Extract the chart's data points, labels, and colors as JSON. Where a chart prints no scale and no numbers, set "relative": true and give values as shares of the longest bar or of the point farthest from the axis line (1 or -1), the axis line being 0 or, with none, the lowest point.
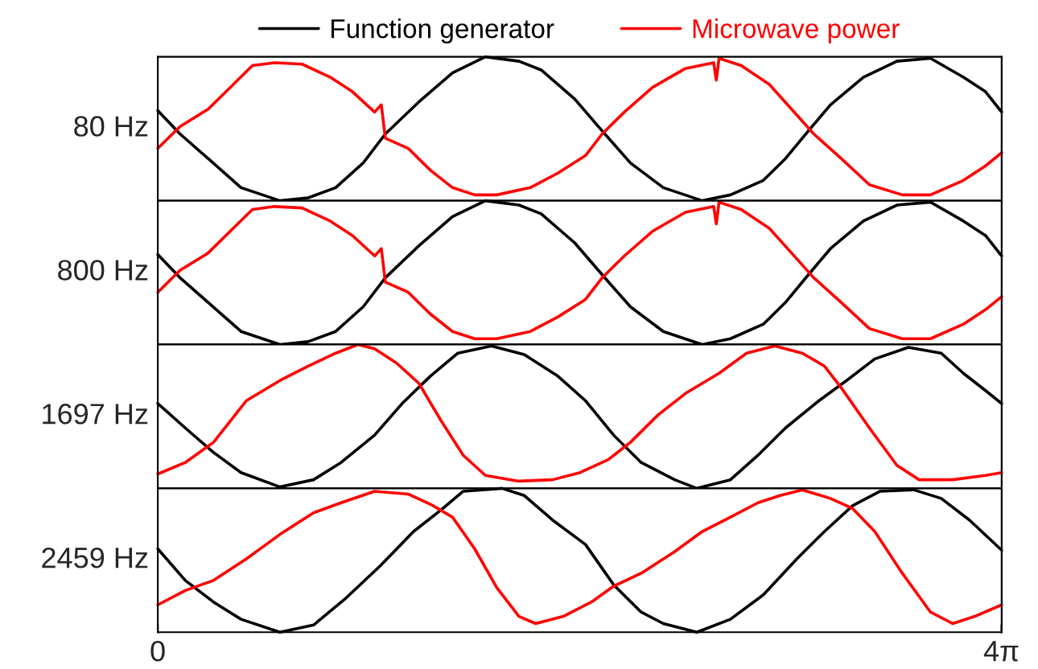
{
  "chart_data": [
    {
      "type": "line",
      "relative": true,
      "ylabel": "80 Hz",
      "xlim": [
        0,
        12.57
      ],
      "tick_labels": false,
      "legend": "top",
      "grid": false,
      "series": [
        {
          "name": "Function generator",
          "color": "#000000",
          "x": [
            0,
            0.33,
            0.75,
            1.24,
            1.82,
            2.24,
            2.65,
            3.06,
            3.39,
            3.89,
            4.39,
            4.88,
            5.38,
            5.71,
            6.21,
            6.62,
            7.04,
            7.53,
            8.11,
            8.53,
            9.02,
            9.35,
            9.69,
            10.02,
            10.51,
            11.01,
            11.51,
            12.0,
            12.33,
            12.57
          ],
          "values": [
            0.63,
            0.47,
            0.3,
            0.1,
            0.01,
            0.03,
            0.1,
            0.27,
            0.47,
            0.69,
            0.89,
            1.0,
            0.97,
            0.91,
            0.71,
            0.49,
            0.27,
            0.1,
            0.01,
            0.05,
            0.15,
            0.3,
            0.49,
            0.67,
            0.86,
            0.97,
            0.99,
            0.86,
            0.76,
            0.62
          ]
        },
        {
          "name": "Microwave power",
          "color": "#ff0000",
          "x": [
            0,
            0.33,
            0.75,
            1.08,
            1.41,
            1.74,
            2.15,
            2.57,
            2.9,
            3.23,
            3.33,
            3.39,
            3.73,
            4.06,
            4.39,
            4.72,
            5.05,
            5.55,
            5.96,
            6.37,
            6.62,
            6.95,
            7.37,
            7.86,
            8.28,
            8.32,
            8.36,
            8.69,
            9.11,
            9.44,
            9.77,
            10.18,
            10.6,
            11.09,
            11.51,
            12.0,
            12.33,
            12.57
          ],
          "values": [
            0.37,
            0.52,
            0.64,
            0.79,
            0.94,
            0.96,
            0.95,
            0.86,
            0.76,
            0.62,
            0.67,
            0.44,
            0.37,
            0.22,
            0.1,
            0.05,
            0.05,
            0.1,
            0.2,
            0.32,
            0.47,
            0.62,
            0.79,
            0.92,
            0.96,
            0.84,
            0.99,
            0.94,
            0.81,
            0.64,
            0.47,
            0.3,
            0.12,
            0.05,
            0.05,
            0.15,
            0.25,
            0.34
          ]
        }
      ]
    },
    {
      "type": "line",
      "relative": true,
      "ylabel": "800 Hz",
      "xlim": [
        0,
        12.57
      ],
      "tick_labels": false,
      "grid": false,
      "series": [
        {
          "color": "#000000",
          "x": [
            0,
            0.33,
            0.75,
            1.24,
            1.82,
            2.24,
            2.65,
            3.06,
            3.39,
            3.89,
            4.39,
            4.88,
            5.38,
            5.71,
            6.21,
            6.62,
            7.04,
            7.53,
            8.11,
            8.53,
            9.02,
            9.35,
            9.69,
            10.02,
            10.51,
            11.01,
            11.51,
            12.0,
            12.33,
            12.57
          ],
          "values": [
            0.63,
            0.47,
            0.3,
            0.1,
            0.01,
            0.03,
            0.1,
            0.27,
            0.47,
            0.69,
            0.89,
            1.0,
            0.97,
            0.91,
            0.71,
            0.49,
            0.27,
            0.1,
            0.01,
            0.05,
            0.15,
            0.3,
            0.49,
            0.67,
            0.86,
            0.97,
            0.99,
            0.86,
            0.76,
            0.62
          ]
        },
        {
          "color": "#ff0000",
          "x": [
            0,
            0.33,
            0.75,
            1.08,
            1.41,
            1.74,
            2.15,
            2.57,
            2.9,
            3.23,
            3.33,
            3.39,
            3.73,
            4.06,
            4.39,
            4.72,
            5.05,
            5.55,
            5.96,
            6.37,
            6.62,
            6.95,
            7.37,
            7.86,
            8.28,
            8.32,
            8.36,
            8.69,
            9.11,
            9.44,
            9.77,
            10.18,
            10.6,
            11.09,
            11.51,
            12.0,
            12.33,
            12.57
          ],
          "values": [
            0.37,
            0.52,
            0.64,
            0.79,
            0.94,
            0.96,
            0.95,
            0.86,
            0.76,
            0.62,
            0.67,
            0.44,
            0.37,
            0.22,
            0.1,
            0.05,
            0.05,
            0.1,
            0.2,
            0.32,
            0.47,
            0.62,
            0.79,
            0.92,
            0.96,
            0.84,
            0.99,
            0.94,
            0.81,
            0.64,
            0.47,
            0.3,
            0.12,
            0.05,
            0.05,
            0.15,
            0.25,
            0.34
          ]
        }
      ]
    },
    {
      "type": "line",
      "relative": true,
      "ylabel": "1697 Hz",
      "xlim": [
        0,
        12.57
      ],
      "tick_labels": false,
      "grid": false,
      "series": [
        {
          "color": "#000000",
          "x": [
            0,
            0.41,
            0.83,
            1.24,
            1.82,
            2.32,
            2.73,
            3.23,
            3.64,
            4.06,
            4.47,
            4.97,
            5.46,
            5.96,
            6.37,
            6.79,
            7.2,
            7.7,
            8.03,
            8.53,
            8.94,
            9.35,
            9.85,
            10.26,
            10.68,
            11.18,
            11.67,
            12.0,
            12.33,
            12.57
          ],
          "values": [
            0.59,
            0.42,
            0.25,
            0.11,
            0.01,
            0.06,
            0.18,
            0.37,
            0.59,
            0.78,
            0.94,
            0.99,
            0.93,
            0.78,
            0.61,
            0.37,
            0.18,
            0.06,
            0,
            0.06,
            0.23,
            0.42,
            0.61,
            0.75,
            0.9,
            0.98,
            0.94,
            0.8,
            0.68,
            0.59
          ]
        },
        {
          "color": "#ff0000",
          "x": [
            0,
            0.41,
            0.83,
            1.32,
            1.82,
            2.24,
            2.65,
            2.98,
            3.23,
            3.56,
            3.89,
            4.22,
            4.55,
            4.88,
            5.38,
            5.88,
            6.29,
            6.71,
            7.04,
            7.45,
            7.86,
            8.36,
            8.77,
            9.19,
            9.6,
            9.93,
            10.18,
            10.6,
            11.01,
            11.34,
            11.84,
            12.33,
            12.57
          ],
          "values": [
            0.1,
            0.18,
            0.32,
            0.61,
            0.75,
            0.85,
            0.94,
            1.0,
            0.97,
            0.87,
            0.73,
            0.47,
            0.23,
            0.09,
            0.05,
            0.06,
            0.11,
            0.2,
            0.32,
            0.51,
            0.66,
            0.8,
            0.94,
            0.99,
            0.94,
            0.85,
            0.7,
            0.42,
            0.16,
            0.06,
            0.06,
            0.09,
            0.11
          ]
        }
      ]
    },
    {
      "type": "line",
      "relative": true,
      "ylabel": "2459 Hz",
      "xlim": [
        0,
        12.57
      ],
      "xticks": [
        {
          "value": 0,
          "label": "0"
        },
        {
          "value": 12.566,
          "label": "4π"
        }
      ],
      "tick_labels": "x",
      "grid": false,
      "series": [
        {
          "color": "#000000",
          "x": [
            0,
            0.41,
            0.83,
            1.24,
            1.82,
            2.32,
            2.81,
            3.31,
            3.81,
            4.22,
            4.55,
            5.13,
            5.46,
            5.88,
            6.37,
            6.79,
            7.2,
            7.53,
            8.03,
            8.53,
            9.02,
            9.52,
            9.93,
            10.35,
            10.76,
            11.26,
            11.67,
            12.09,
            12.57
          ],
          "values": [
            0.58,
            0.36,
            0.21,
            0.09,
            0,
            0.05,
            0.24,
            0.46,
            0.7,
            0.85,
            0.98,
            1.0,
            0.95,
            0.78,
            0.61,
            0.33,
            0.14,
            0.06,
            0,
            0.09,
            0.26,
            0.51,
            0.7,
            0.88,
            0.98,
            0.99,
            0.93,
            0.78,
            0.57
          ]
        },
        {
          "color": "#ff0000",
          "x": [
            0,
            0.41,
            0.83,
            1.32,
            1.82,
            2.32,
            2.73,
            3.23,
            3.73,
            4.06,
            4.39,
            4.72,
            5.05,
            5.38,
            5.63,
            6.04,
            6.46,
            6.79,
            7.2,
            7.7,
            8.11,
            8.53,
            8.94,
            9.27,
            9.6,
            10.02,
            10.35,
            10.68,
            11.09,
            11.51,
            11.84,
            12.17,
            12.57
          ],
          "values": [
            0.19,
            0.29,
            0.36,
            0.51,
            0.68,
            0.83,
            0.9,
            0.98,
            0.96,
            0.89,
            0.8,
            0.58,
            0.31,
            0.11,
            0.06,
            0.11,
            0.21,
            0.32,
            0.41,
            0.56,
            0.7,
            0.8,
            0.9,
            0.95,
            0.99,
            0.93,
            0.86,
            0.7,
            0.41,
            0.14,
            0.06,
            0.11,
            0.19
          ]
        }
      ]
    }
  ]
}
